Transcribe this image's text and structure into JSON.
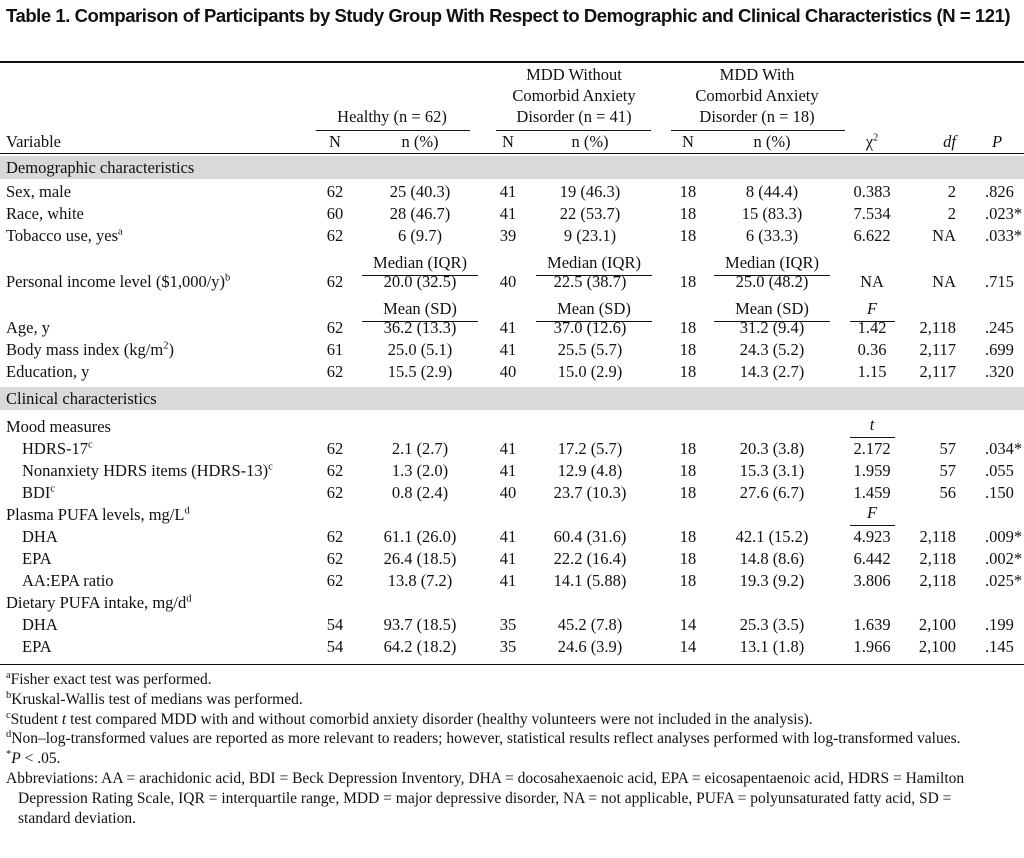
{
  "title": "Table 1. Comparison of Participants by Study Group With Respect to Demographic and Clinical Characteristics (N = 121)",
  "header": {
    "groups": [
      {
        "lines": [
          "Healthy (n = 62)"
        ]
      },
      {
        "lines": [
          "MDD Without",
          "Comorbid Anxiety",
          "Disorder (n = 41)"
        ]
      },
      {
        "lines": [
          "MDD With",
          "Comorbid Anxiety",
          "Disorder (n = 18)"
        ]
      }
    ],
    "columns": [
      "Variable",
      "N",
      "n (%)",
      "N",
      "n (%)",
      "N",
      "n (%)",
      {
        "text": "χ",
        "sup": "2"
      },
      "df",
      "P"
    ]
  },
  "rows": [
    {
      "section": "Demographic characteristics"
    },
    {
      "label": "Sex, male",
      "cells": [
        "62",
        "25 (40.3)",
        "41",
        "19 (46.3)",
        "18",
        "8 (44.4)",
        "0.383",
        "2",
        ".826"
      ]
    },
    {
      "label": "Race, white",
      "cells": [
        "60",
        "28 (46.7)",
        "41",
        "22 (53.7)",
        "18",
        "15 (83.3)",
        "7.534",
        "2",
        ".023*"
      ]
    },
    {
      "label": "Tobacco use, yes",
      "sup": "a",
      "cells": [
        "62",
        "6 (9.7)",
        "39",
        "9 (23.1)",
        "18",
        "6 (33.3)",
        "6.622",
        "NA",
        ".033*"
      ]
    },
    {
      "subheads": [
        "Median (IQR)",
        "Median (IQR)",
        "Median (IQR)"
      ]
    },
    {
      "label": "Personal income level ($1,000/y)",
      "sup": "b",
      "cells": [
        "62",
        "20.0 (32.5)",
        "40",
        "22.5 (38.7)",
        "18",
        "25.0 (48.2)",
        "NA",
        "NA",
        ".715"
      ]
    },
    {
      "subheads": [
        "Mean (SD)",
        "Mean (SD)",
        "Mean (SD)"
      ],
      "stat_head": "F"
    },
    {
      "label": "Age, y",
      "cells": [
        "62",
        "36.2 (13.3)",
        "41",
        "37.0 (12.6)",
        "18",
        "31.2 (9.4)",
        "1.42",
        "2,118",
        ".245"
      ]
    },
    {
      "label": "Body mass index (kg/m",
      "sup": "2",
      "label_end": ")",
      "cells": [
        "61",
        "25.0 (5.1)",
        "41",
        "25.5 (5.7)",
        "18",
        "24.3 (5.2)",
        "0.36",
        "2,117",
        ".699"
      ]
    },
    {
      "label": "Education, y",
      "cells": [
        "62",
        "15.5 (2.9)",
        "40",
        "15.0 (2.9)",
        "18",
        "14.3 (2.7)",
        "1.15",
        "2,117",
        ".320"
      ]
    },
    {
      "section": "Clinical characteristics"
    },
    {
      "label": "Mood measures",
      "stat_head": "t",
      "rows": [
        {
          "label": "HDRS-17",
          "sup": "c",
          "cells": [
            "62",
            "2.1 (2.7)",
            "41",
            "17.2 (5.7)",
            "18",
            "20.3 (3.8)",
            "2.172",
            "57",
            ".034*"
          ]
        },
        {
          "label": "Nonanxiety HDRS items (HDRS-13)",
          "sup": "c",
          "cells": [
            "62",
            "1.3 (2.0)",
            "41",
            "12.9 (4.8)",
            "18",
            "15.3 (3.1)",
            "1.959",
            "57",
            ".055"
          ]
        },
        {
          "label": "BDI",
          "sup": "c",
          "cells": [
            "62",
            "0.8 (2.4)",
            "40",
            "23.7 (10.3)",
            "18",
            "27.6 (6.7)",
            "1.459",
            "56",
            ".150"
          ]
        }
      ]
    },
    {
      "label": "Plasma PUFA levels, mg/L",
      "sup": "d",
      "stat_head": "F",
      "rows": [
        {
          "label": "DHA",
          "cells": [
            "62",
            "61.1 (26.0)",
            "41",
            "60.4 (31.6)",
            "18",
            "42.1 (15.2)",
            "4.923",
            "2,118",
            ".009*"
          ]
        },
        {
          "label": "EPA",
          "cells": [
            "62",
            "26.4 (18.5)",
            "41",
            "22.2 (16.4)",
            "18",
            "14.8 (8.6)",
            "6.442",
            "2,118",
            ".002*"
          ]
        },
        {
          "label": "AA:EPA ratio",
          "cells": [
            "62",
            "13.8 (7.2)",
            "41",
            "14.1 (5.88)",
            "18",
            "19.3 (9.2)",
            "3.806",
            "2,118",
            ".025*"
          ]
        }
      ]
    },
    {
      "label": "Dietary PUFA intake, mg/d",
      "sup": "d",
      "rows": [
        {
          "label": "DHA",
          "cells": [
            "54",
            "93.7 (18.5)",
            "35",
            "45.2 (7.8)",
            "14",
            "25.3 (3.5)",
            "1.639",
            "2,100",
            ".199"
          ]
        },
        {
          "label": "EPA",
          "cells": [
            "54",
            "64.2 (18.2)",
            "35",
            "24.6 (3.9)",
            "14",
            "13.1 (1.8)",
            "1.966",
            "2,100",
            ".145"
          ]
        }
      ]
    }
  ],
  "footnotes": [
    {
      "mark": "a",
      "parts": [
        {
          "text": "Fisher exact test was performed."
        }
      ]
    },
    {
      "mark": "b",
      "parts": [
        {
          "text": "Kruskal-Wallis test of medians was performed."
        }
      ]
    },
    {
      "mark": "c",
      "parts": [
        {
          "text": "Student "
        },
        {
          "italic": "t"
        },
        {
          "text": " test compared MDD with and without comorbid anxiety disorder (healthy volunteers were not included in the analysis)."
        }
      ]
    },
    {
      "mark": "d",
      "parts": [
        {
          "text": "Non–log-transformed values are reported as more relevant to readers; however, statistical results reflect analyses performed with log-transformed values."
        }
      ]
    },
    {
      "mark": "*",
      "parts": [
        {
          "italic": "P"
        },
        {
          "text": " < .05."
        }
      ]
    }
  ],
  "abbreviations": "Abbreviations: AA = arachidonic acid, BDI = Beck Depression Inventory, DHA = docosahexaenoic acid, EPA = eicosapentaenoic acid, HDRS = Hamilton Depression Rating Scale, IQR = interquartile range, MDD = major depressive disorder, NA = not applicable, PUFA = polyunsaturated fatty acid, SD = standard deviation."
}
